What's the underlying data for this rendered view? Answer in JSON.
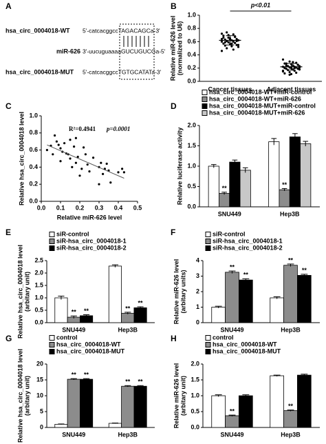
{
  "sequence_panel": {
    "panel_label": "A",
    "rows": [
      {
        "name": "hsa_circ_0004018-WT",
        "sequence": "5'-catcacggccTAGACAGCa-3'"
      },
      {
        "name": "miR-626",
        "sequence": "3'-uucuguaaaaGUCUGUCGa-5'"
      },
      {
        "name": "hsa_circ_0004018-MUT",
        "sequence": "5'-catcacggccTGTGCATATa-3'"
      }
    ]
  },
  "chart_data": [
    {
      "type": "dotplot",
      "panel_label": "B",
      "ylabel": [
        "Relative miR-626 level",
        "(normalized to U6)"
      ],
      "annotation": "p<0.01",
      "categories": [
        "Cancer tissues",
        "Adjacent tissues"
      ],
      "values": [
        [
          0.72,
          0.7,
          0.68,
          0.66,
          0.65,
          0.64,
          0.63,
          0.62,
          0.62,
          0.61,
          0.6,
          0.6,
          0.59,
          0.58,
          0.57,
          0.56,
          0.55,
          0.54,
          0.53,
          0.52,
          0.5,
          0.48,
          0.46,
          0.66,
          0.67,
          0.69,
          0.63,
          0.61,
          0.59,
          0.57,
          0.55,
          0.74,
          0.71,
          0.64
        ],
        [
          0.33,
          0.3,
          0.28,
          0.27,
          0.26,
          0.25,
          0.24,
          0.24,
          0.23,
          0.23,
          0.22,
          0.22,
          0.21,
          0.21,
          0.2,
          0.2,
          0.19,
          0.19,
          0.18,
          0.18,
          0.17,
          0.16,
          0.15,
          0.14,
          0.13,
          0.12,
          0.11,
          0.25,
          0.27,
          0.29,
          0.21,
          0.23,
          0.2,
          0.16,
          0.1
        ]
      ],
      "means": [
        0.62,
        0.22
      ],
      "sd": [
        0.07,
        0.05
      ],
      "color": "#000000",
      "ylim": [
        0,
        1.0
      ],
      "yticks": [
        {
          "value": 0,
          "label": "0.0"
        },
        0.2,
        0.4,
        0.6,
        0.8,
        {
          "value": 1.0,
          "label": "1.0"
        }
      ]
    },
    {
      "type": "scatter",
      "panel_label": "C",
      "xlabel": [
        "Relative miR-626 level"
      ],
      "ylabel": [
        "Relative hsa_circ_0004018 level"
      ],
      "annotation": "R²=0.4941",
      "annotation_p": "p=0.0001",
      "x": [
        0.03,
        0.05,
        0.06,
        0.07,
        0.08,
        0.09,
        0.1,
        0.1,
        0.11,
        0.12,
        0.13,
        0.14,
        0.15,
        0.15,
        0.16,
        0.17,
        0.18,
        0.18,
        0.19,
        0.2,
        0.21,
        0.22,
        0.23,
        0.24,
        0.25,
        0.27,
        0.3,
        0.31,
        0.32,
        0.33,
        0.34,
        0.35,
        0.36,
        0.4,
        0.42,
        0.43,
        0.3
      ],
      "y": [
        0.6,
        0.65,
        0.55,
        0.77,
        0.7,
        0.66,
        0.62,
        0.47,
        0.58,
        0.68,
        0.56,
        0.55,
        0.72,
        0.5,
        0.4,
        0.64,
        0.74,
        0.45,
        0.52,
        0.3,
        0.38,
        0.63,
        0.55,
        0.43,
        0.35,
        0.51,
        0.4,
        0.45,
        0.32,
        0.38,
        0.44,
        0.36,
        0.22,
        0.34,
        0.38,
        0.34,
        0.2
      ],
      "trend_line": {
        "x": [
          0.03,
          0.43
        ],
        "y": [
          0.66,
          0.27
        ]
      },
      "color": "#000000",
      "xlim": [
        0,
        0.5
      ],
      "xticks": [
        {
          "value": 0,
          "label": "0.0"
        },
        0.1,
        0.2,
        0.3,
        0.4,
        0.5
      ],
      "ylim": [
        0,
        1.0
      ],
      "yticks": [
        {
          "value": 0,
          "label": "0.0"
        },
        0.2,
        0.4,
        0.6,
        0.8,
        {
          "value": 1.0,
          "label": "1.0"
        }
      ]
    },
    {
      "type": "bar",
      "panel_label": "D",
      "ylabel": [
        "Relative luciferase activity"
      ],
      "categories": [
        "SNU449",
        "Hep3B"
      ],
      "series": [
        {
          "name": "hsa_circ_0004018-WT+miR-control",
          "color": "#ffffff",
          "values": [
            1.0,
            1.6
          ],
          "errors": [
            0.04,
            0.08
          ],
          "annotations": [
            null,
            null
          ]
        },
        {
          "name": "hsa_circ_0004018-WT+miR-626",
          "color": "#8c8c8c",
          "values": [
            0.33,
            0.42
          ],
          "errors": [
            0.03,
            0.03
          ],
          "annotations": [
            "**",
            "**"
          ]
        },
        {
          "name": "hsa_circ_0004018-MUT+miR-control",
          "color": "#000000",
          "values": [
            1.1,
            1.72
          ],
          "errors": [
            0.05,
            0.08
          ],
          "annotations": [
            null,
            null
          ]
        },
        {
          "name": "hsa_circ_0004018-MUT+miR-626",
          "color": "#c8c8c8",
          "values": [
            0.9,
            1.55
          ],
          "errors": [
            0.06,
            0.06
          ],
          "annotations": [
            null,
            null
          ]
        }
      ],
      "ylim": [
        0,
        2.0
      ],
      "yticks": [
        {
          "value": 0,
          "label": "0.0"
        },
        0.5,
        {
          "value": 1.0,
          "label": "1.0"
        },
        1.5,
        {
          "value": 2.0,
          "label": "2.0"
        }
      ]
    },
    {
      "type": "bar",
      "panel_label": "E",
      "ylabel": [
        "Relative hsa_circ_0004018 level",
        "(arbitary unit)"
      ],
      "categories": [
        "SNU449",
        "Hep3B"
      ],
      "series": [
        {
          "name": "siR-control",
          "color": "#ffffff",
          "values": [
            1.0,
            2.28
          ],
          "errors": [
            0.07,
            0.05
          ],
          "annotations": [
            null,
            null
          ]
        },
        {
          "name": "siR-hsa_circ_0004018-1",
          "color": "#8c8c8c",
          "values": [
            0.22,
            0.38
          ],
          "errors": [
            0.05,
            0.04
          ],
          "annotations": [
            "**",
            "**"
          ]
        },
        {
          "name": "siR-hsa_circ_0004018-2",
          "color": "#000000",
          "values": [
            0.28,
            0.6
          ],
          "errors": [
            0.04,
            0.04
          ],
          "annotations": [
            "**",
            "**"
          ]
        }
      ],
      "ylim": [
        0,
        2.5
      ],
      "yticks": [
        {
          "value": 0,
          "label": "0.0"
        },
        0.5,
        {
          "value": 1.0,
          "label": "1.0"
        },
        1.5,
        {
          "value": 2.0,
          "label": "2.0"
        },
        2.5
      ]
    },
    {
      "type": "bar",
      "panel_label": "F",
      "ylabel": [
        "Relative miR-626 level",
        "(arbitary units)"
      ],
      "categories": [
        "SNU449",
        "Hep3B"
      ],
      "series": [
        {
          "name": "siR-control",
          "color": "#ffffff",
          "values": [
            1.0,
            1.6
          ],
          "errors": [
            0.06,
            0.07
          ],
          "annotations": [
            null,
            null
          ]
        },
        {
          "name": "siR-hsa_circ_0004018-1",
          "color": "#8c8c8c",
          "values": [
            3.25,
            3.7
          ],
          "errors": [
            0.08,
            0.08
          ],
          "annotations": [
            "**",
            "**"
          ]
        },
        {
          "name": "siR-hsa_circ_0004018-2",
          "color": "#000000",
          "values": [
            2.75,
            3.05
          ],
          "errors": [
            0.08,
            0.07
          ],
          "annotations": [
            "**",
            "**"
          ]
        }
      ],
      "ylim": [
        0,
        4
      ],
      "yticks": [
        0,
        1,
        2,
        3,
        4
      ]
    },
    {
      "type": "bar",
      "panel_label": "G",
      "ylabel": [
        "Relative hsa_circ_0004018 level",
        "(arbitary unit)"
      ],
      "categories": [
        "SNU449",
        "Hep3B"
      ],
      "series": [
        {
          "name": "control",
          "color": "#ffffff",
          "values": [
            1.0,
            1.3
          ],
          "errors": [
            0.1,
            0.1
          ],
          "annotations": [
            null,
            null
          ]
        },
        {
          "name": "hsa_circ_0004018-WT",
          "color": "#8c8c8c",
          "values": [
            15.2,
            13.0
          ],
          "errors": [
            0.2,
            0.2
          ],
          "annotations": [
            "**",
            "**"
          ]
        },
        {
          "name": "hsa_circ_0004018-MUT",
          "color": "#000000",
          "values": [
            15.2,
            13.0
          ],
          "errors": [
            0.2,
            0.2
          ],
          "annotations": [
            "**",
            "**"
          ]
        }
      ],
      "ylim": [
        0,
        20
      ],
      "yticks": [
        0,
        5,
        10,
        15,
        20
      ]
    },
    {
      "type": "bar",
      "panel_label": "H",
      "ylabel": [
        "Relative miR-626 level",
        "(arbitary unit)"
      ],
      "categories": [
        "SNU449",
        "Hep3B"
      ],
      "series": [
        {
          "name": "control",
          "color": "#ffffff",
          "values": [
            1.0,
            1.63
          ],
          "errors": [
            0.03,
            0.02
          ],
          "annotations": [
            null,
            null
          ]
        },
        {
          "name": "hsa_circ_0004018-WT",
          "color": "#8c8c8c",
          "values": [
            0.37,
            0.53
          ],
          "errors": [
            0.02,
            0.02
          ],
          "annotations": [
            "**",
            "**"
          ]
        },
        {
          "name": "hsa_circ_0004018-MUT",
          "color": "#000000",
          "values": [
            1.0,
            1.65
          ],
          "errors": [
            0.03,
            0.03
          ],
          "annotations": [
            null,
            null
          ]
        }
      ],
      "ylim": [
        0,
        2.0
      ],
      "yticks": [
        {
          "value": 0,
          "label": "0.0"
        },
        0.5,
        {
          "value": 1.0,
          "label": "1.0"
        },
        1.5,
        {
          "value": 2.0,
          "label": "2.0"
        }
      ]
    }
  ]
}
